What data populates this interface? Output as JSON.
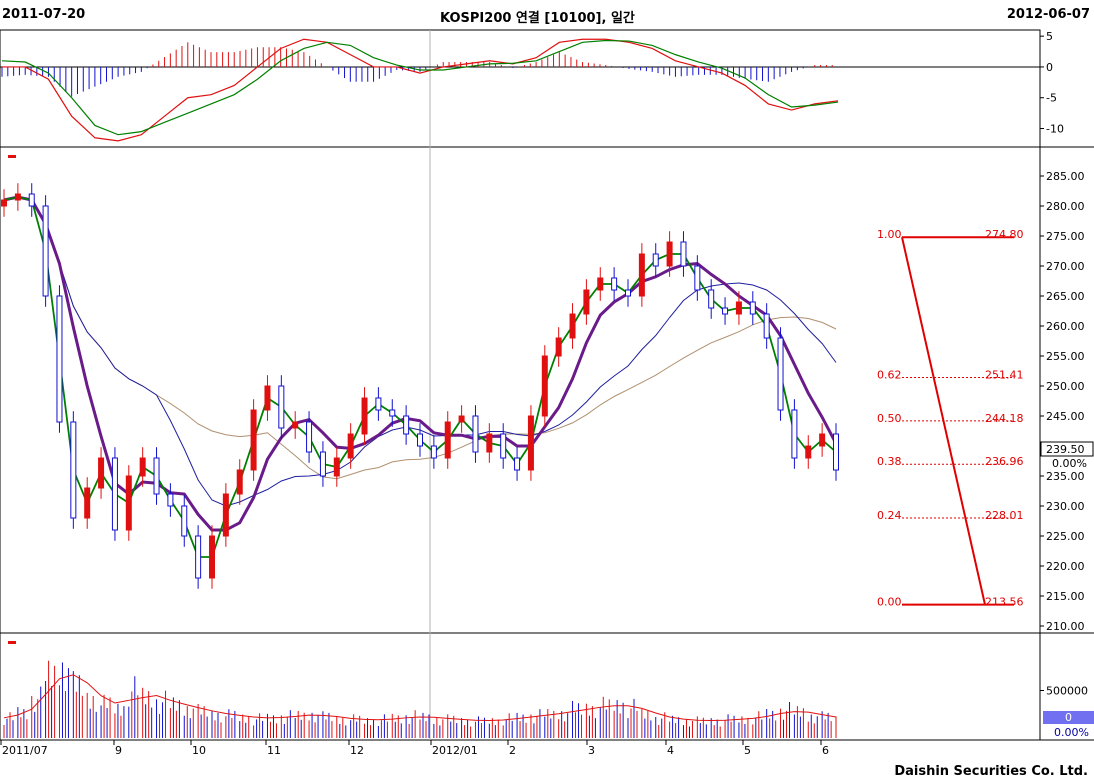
{
  "header": {
    "start_date": "2011-07-20",
    "title": "KOSPI200 연결 [10100], 일간",
    "end_date": "2012-06-07"
  },
  "footer": {
    "company": "Daishin Securities Co. Ltd."
  },
  "colors": {
    "up": "#e01010",
    "down": "#1010d0",
    "ma_fast": "#008000",
    "ma_slow": "#6a1b8a",
    "ma_mid": "#2020a0",
    "ma_long": "#b09070",
    "fib": "#e00000"
  },
  "chart_data": [
    {
      "type": "line",
      "panel": "macd",
      "y_ticks": [
        "5",
        "0",
        "-5",
        "-10"
      ],
      "ylim": [
        -13,
        6
      ],
      "series": [
        {
          "values": [
            0,
            0,
            -2,
            -8,
            -11.5,
            -12,
            -11,
            -8,
            -5,
            -4.5,
            -3,
            0,
            3,
            4.5,
            4,
            2,
            0,
            0,
            -1,
            0,
            0.5,
            1,
            0.5,
            1.5,
            4,
            4.5,
            4.5,
            4,
            3,
            1,
            0,
            -1,
            -3,
            -6,
            -7,
            -6,
            -5.5
          ]
        },
        {
          "values": [
            1,
            0.8,
            -1,
            -5,
            -9.5,
            -11,
            -10.5,
            -9,
            -7.5,
            -6,
            -4.5,
            -2,
            1,
            3,
            4,
            3.5,
            1.5,
            0.3,
            -0.5,
            -0.5,
            0,
            0.5,
            0.6,
            1,
            2.5,
            4,
            4.3,
            4.2,
            3.5,
            2,
            0.8,
            -0.2,
            -1.8,
            -4.5,
            -6.5,
            -6.2,
            -5.7
          ]
        }
      ]
    },
    {
      "type": "candlestick",
      "panel": "price",
      "y_ticks": [
        "285.00",
        "280.00",
        "275.00",
        "270.00",
        "265.00",
        "260.00",
        "255.00",
        "250.00",
        "245.00",
        "240.00",
        "235.00",
        "230.00",
        "225.00",
        "220.00",
        "215.00",
        "210.00"
      ],
      "ylim": [
        209,
        288
      ],
      "last_price": "239.50",
      "change_pct": "0.00%",
      "close": [
        281,
        282,
        280,
        265,
        244,
        228,
        233,
        238,
        226,
        235,
        238,
        232,
        230,
        225,
        218,
        225,
        232,
        236,
        246,
        250,
        243,
        244,
        239,
        235,
        238,
        242,
        248,
        246,
        245,
        242,
        240,
        238,
        244,
        245,
        239,
        242,
        238,
        236,
        245,
        255,
        258,
        262,
        266,
        268,
        266,
        265,
        272,
        270,
        274,
        270,
        266,
        263,
        262,
        264,
        262,
        258,
        246,
        238,
        240,
        242,
        236
      ],
      "fib_levels": [
        {
          "ratio": "1.00",
          "value": "274.80"
        },
        {
          "ratio": "0.62",
          "value": "251.41"
        },
        {
          "ratio": "0.50",
          "value": "244.18"
        },
        {
          "ratio": "0.38",
          "value": "236.96"
        },
        {
          "ratio": "0.24",
          "value": "228.01"
        },
        {
          "ratio": "0.00",
          "value": "213.56"
        }
      ]
    },
    {
      "type": "bar",
      "panel": "volume",
      "y_ticks": [
        "500000"
      ],
      "last_volume": "0",
      "change_pct": "0.00%",
      "values": [
        250000,
        320000,
        500000,
        800000,
        900000,
        650000,
        500000,
        420000,
        380000,
        600000,
        520000,
        460000,
        420000,
        380000,
        330000,
        300000,
        280000,
        260000,
        240000,
        250000,
        270000,
        280000,
        300000,
        260000,
        240000,
        230000,
        220000,
        230000,
        250000,
        270000,
        260000,
        240000,
        230000,
        220000,
        210000,
        220000,
        240000,
        260000,
        280000,
        300000,
        320000,
        360000,
        380000,
        400000,
        420000,
        380000,
        300000,
        250000,
        230000,
        220000,
        210000,
        220000,
        230000,
        240000,
        260000,
        300000,
        350000,
        330000,
        280000,
        260000,
        240000
      ]
    }
  ],
  "x_axis": {
    "labels": [
      "2011/07",
      "9",
      "10",
      "11",
      "12",
      "2012/01",
      "2",
      "3",
      "4",
      "5",
      "6"
    ]
  }
}
